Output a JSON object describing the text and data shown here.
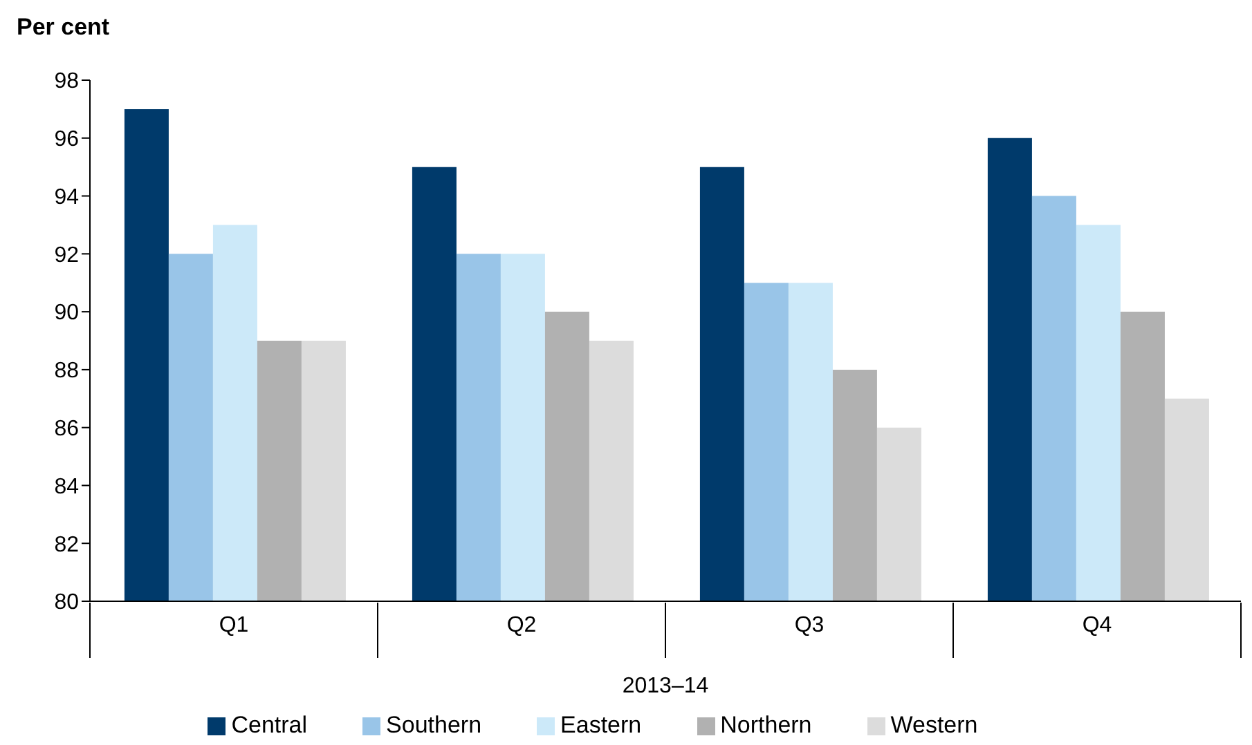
{
  "chart_data": {
    "type": "bar",
    "ylabel": "Per cent",
    "xlabel": "2013–14",
    "categories": [
      "Q1",
      "Q2",
      "Q3",
      "Q4"
    ],
    "series": [
      {
        "name": "Central",
        "color": "#003a6b",
        "values": [
          97,
          95,
          95,
          96
        ]
      },
      {
        "name": "Southern",
        "color": "#99c5e8",
        "values": [
          92,
          92,
          91,
          94
        ]
      },
      {
        "name": "Eastern",
        "color": "#cce9f9",
        "values": [
          93,
          92,
          91,
          93
        ]
      },
      {
        "name": "Northern",
        "color": "#b1b1b1",
        "values": [
          89,
          90,
          88,
          90
        ]
      },
      {
        "name": "Western",
        "color": "#dcdcdc",
        "values": [
          89,
          89,
          86,
          87
        ]
      }
    ],
    "ylim": [
      80,
      98
    ],
    "yticks": [
      80,
      82,
      84,
      86,
      88,
      90,
      92,
      94,
      96,
      98
    ],
    "grid": false,
    "legend": "bottom"
  }
}
